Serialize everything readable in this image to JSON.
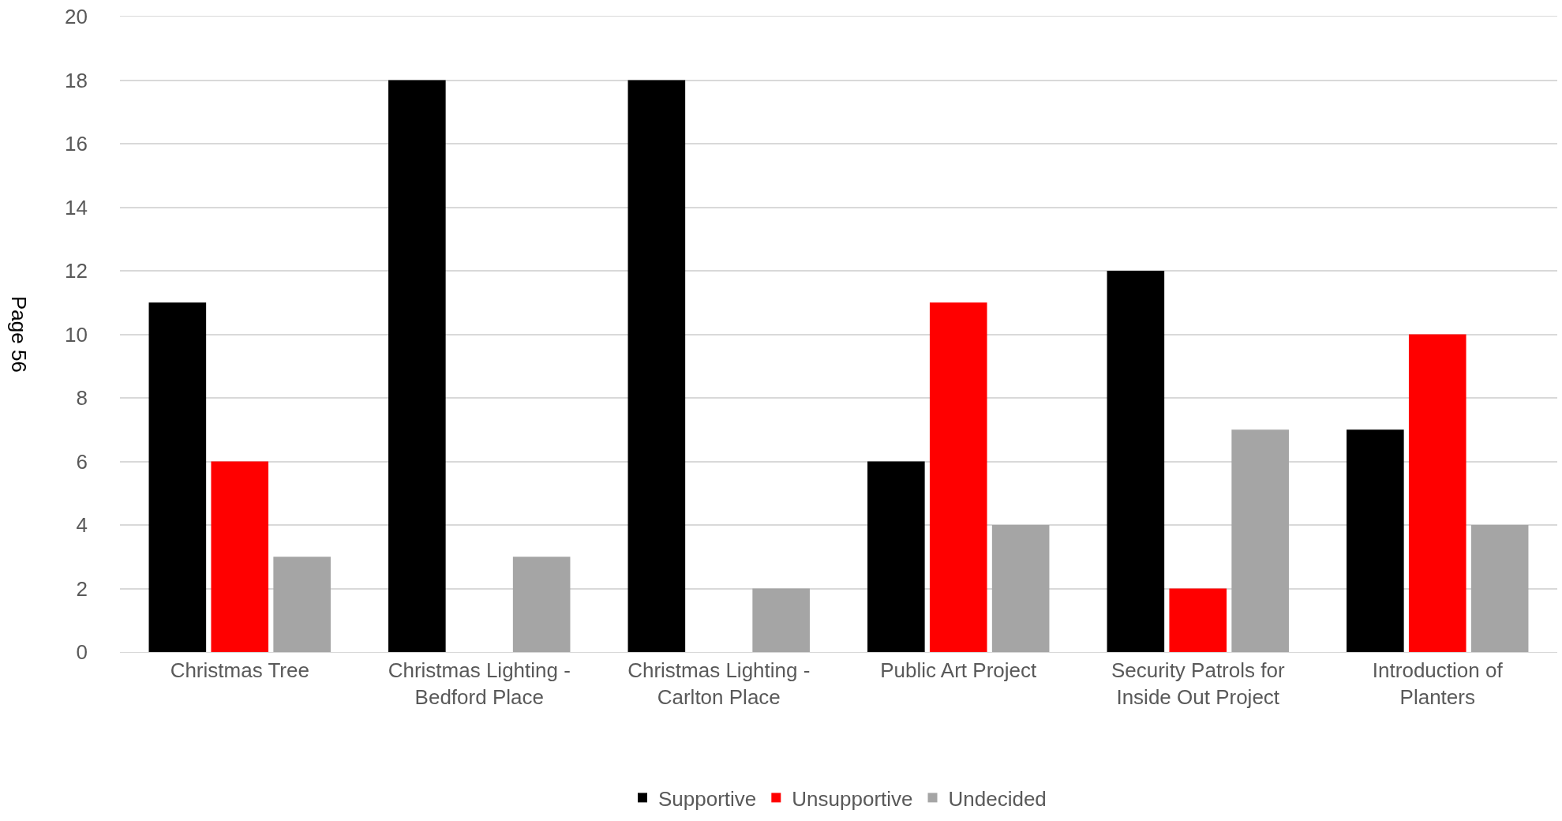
{
  "chart_data": {
    "type": "bar",
    "categories": [
      "Christmas Tree",
      "Christmas Lighting - Bedford Place",
      "Christmas Lighting - Carlton Place",
      "Public Art Project",
      "Security Patrols for Inside Out Project",
      "Introduction of Planters"
    ],
    "series": [
      {
        "name": "Supportive",
        "color": "#000000",
        "values": [
          11,
          18,
          18,
          6,
          12,
          7
        ]
      },
      {
        "name": "Unsupportive",
        "color": "#ff0000",
        "values": [
          6,
          0,
          0,
          11,
          2,
          10
        ]
      },
      {
        "name": "Undecided",
        "color": "#a5a5a5",
        "values": [
          3,
          3,
          2,
          4,
          7,
          4
        ]
      }
    ],
    "ylim": [
      0,
      20
    ],
    "yticks": [
      0,
      2,
      4,
      6,
      8,
      10,
      12,
      14,
      16,
      18,
      20
    ],
    "grid": "y",
    "legend": "bottom",
    "annotations": [
      "Page 56"
    ]
  }
}
